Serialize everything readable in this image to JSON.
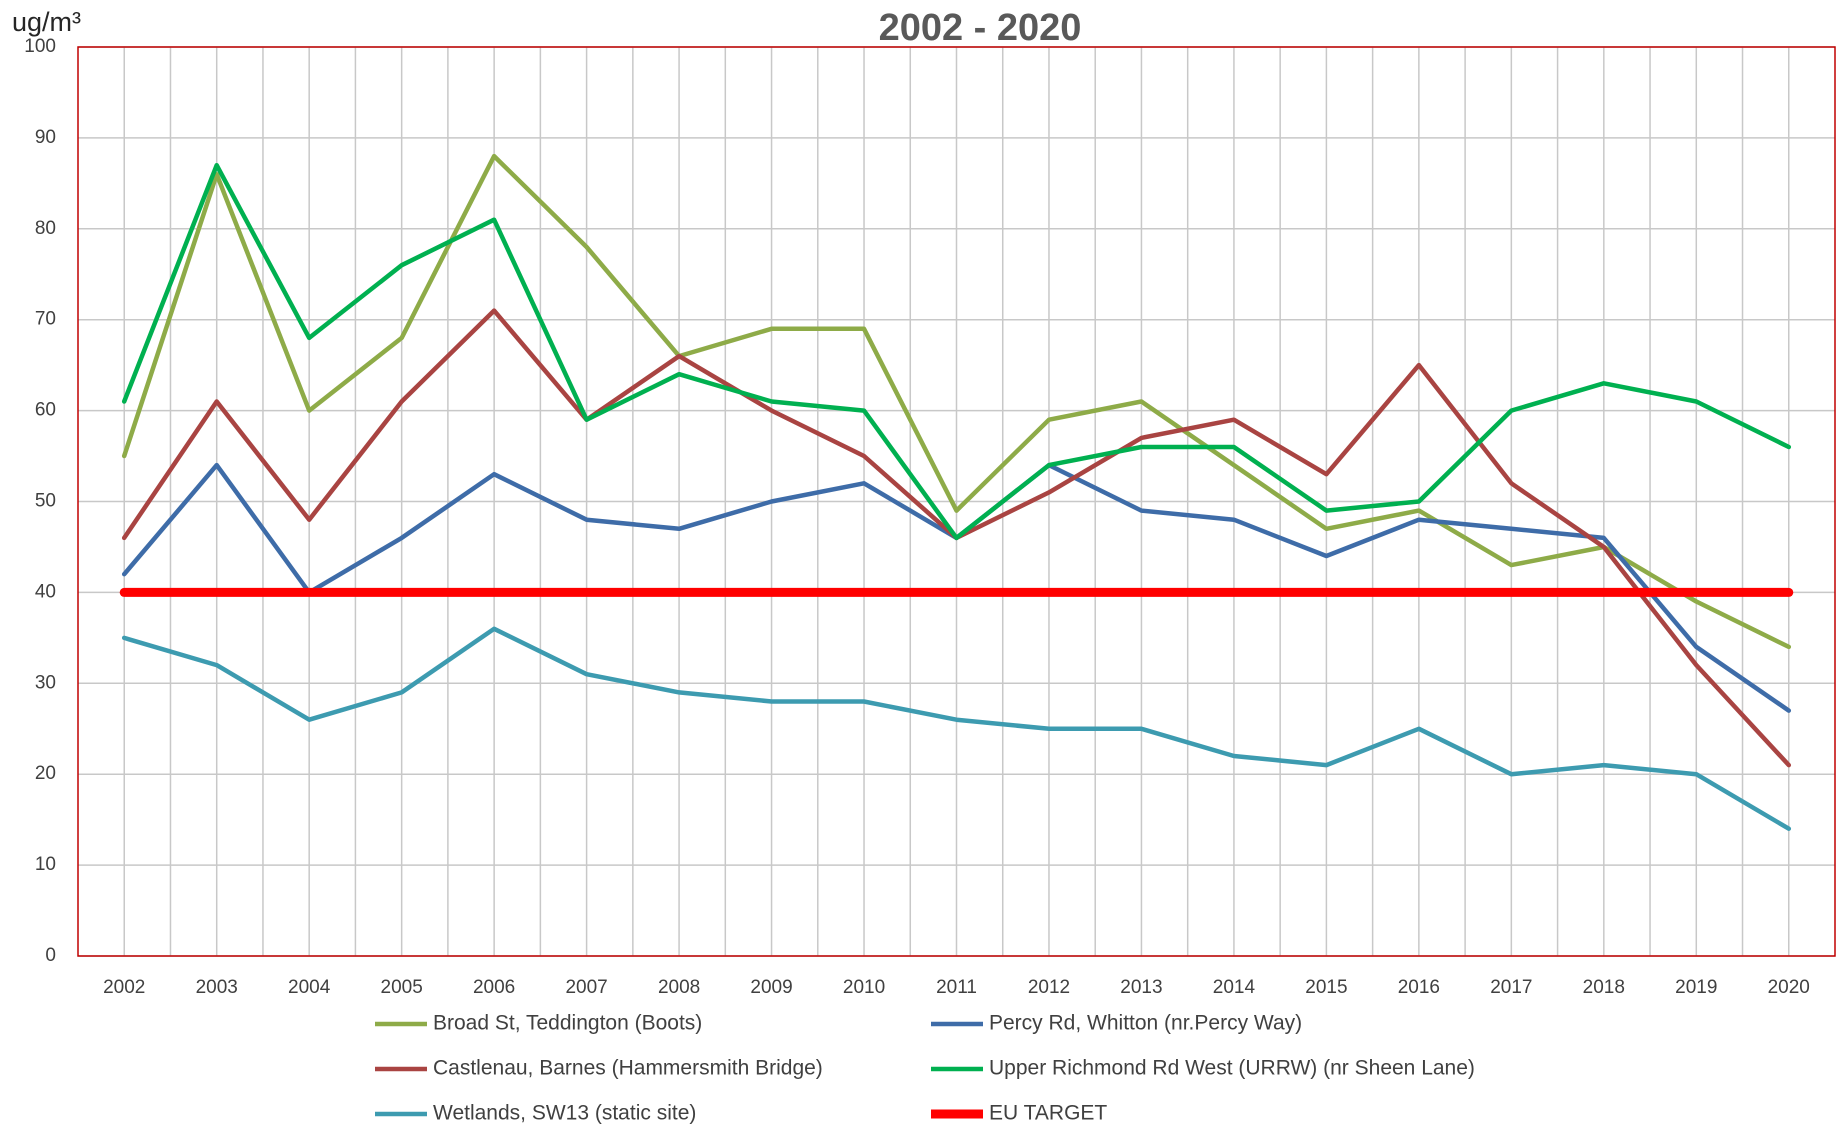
{
  "chart_data": {
    "type": "line",
    "title": "2002 - 2020",
    "y_label": "ug/m³",
    "categories": [
      "2002",
      "2003",
      "2004",
      "2005",
      "2006",
      "2007",
      "2008",
      "2009",
      "2010",
      "2011",
      "2012",
      "2013",
      "2014",
      "2015",
      "2016",
      "2017",
      "2018",
      "2019",
      "2020"
    ],
    "ylim": [
      0,
      100
    ],
    "yticks": [
      0,
      10,
      20,
      30,
      40,
      50,
      60,
      70,
      80,
      90,
      100
    ],
    "grid": true,
    "series": [
      {
        "name": "Broad St, Teddington (Boots)",
        "color": "#8eab48",
        "values": [
          55,
          86,
          60,
          68,
          88,
          78,
          66,
          69,
          69,
          49,
          59,
          61,
          54,
          47,
          49,
          43,
          45,
          39,
          34
        ]
      },
      {
        "name": "Percy Rd, Whitton (nr.Percy Way)",
        "color": "#3e6ca8",
        "values": [
          42,
          54,
          40,
          46,
          53,
          48,
          47,
          50,
          52,
          46,
          54,
          49,
          48,
          44,
          48,
          47,
          46,
          34,
          27
        ]
      },
      {
        "name": "Castlenau, Barnes (Hammersmith Bridge)",
        "color": "#a94442",
        "values": [
          46,
          61,
          48,
          61,
          71,
          59,
          66,
          60,
          55,
          46,
          51,
          57,
          59,
          53,
          65,
          52,
          45,
          32,
          21
        ]
      },
      {
        "name": "Upper Richmond Rd West (URRW) (nr Sheen Lane)",
        "color": "#00b050",
        "values": [
          61,
          87,
          68,
          76,
          81,
          59,
          64,
          61,
          60,
          46,
          54,
          56,
          56,
          49,
          50,
          60,
          63,
          61,
          56
        ]
      },
      {
        "name": "Wetlands, SW13 (static site)",
        "color": "#3d9bb0",
        "values": [
          35,
          32,
          26,
          29,
          36,
          31,
          29,
          28,
          28,
          26,
          25,
          25,
          22,
          21,
          25,
          20,
          21,
          20,
          14
        ]
      },
      {
        "name": "EU TARGET",
        "color": "#ff0000",
        "values": [
          40,
          40,
          40,
          40,
          40,
          40,
          40,
          40,
          40,
          40,
          40,
          40,
          40,
          40,
          40,
          40,
          40,
          40,
          40
        ]
      }
    ]
  }
}
